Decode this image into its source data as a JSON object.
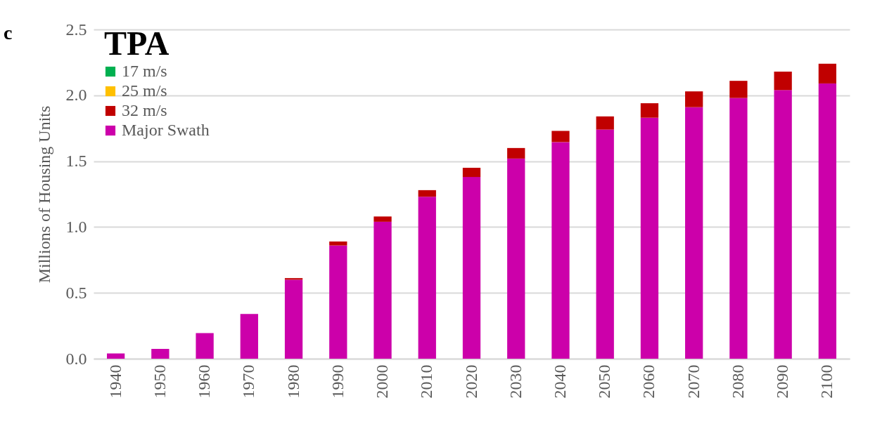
{
  "chart_data": {
    "type": "bar",
    "title": "TPA",
    "ylabel": "Millions of Housing Units",
    "annotations": [
      "c"
    ],
    "categories": [
      "1940",
      "1950",
      "1960",
      "1970",
      "1980",
      "1990",
      "2000",
      "2010",
      "2020",
      "2030",
      "2040",
      "2050",
      "2060",
      "2070",
      "2080",
      "2090",
      "2100"
    ],
    "stacked": true,
    "series": [
      {
        "name": "Major Swath",
        "color": "#cc00aa",
        "values": [
          0.04,
          0.075,
          0.195,
          0.34,
          0.6,
          0.86,
          1.04,
          1.23,
          1.38,
          1.52,
          1.645,
          1.74,
          1.83,
          1.91,
          1.98,
          2.04,
          2.09
        ]
      },
      {
        "name": "32 m/s",
        "color": "#c00000",
        "values": [
          null,
          null,
          null,
          null,
          0.012,
          0.03,
          0.04,
          0.05,
          0.07,
          0.08,
          0.085,
          0.1,
          0.11,
          0.12,
          0.13,
          0.14,
          0.15
        ]
      },
      {
        "name": "25 m/s",
        "color": "#ffc000",
        "values": [
          0,
          0,
          0,
          0,
          0,
          0,
          0,
          0,
          0,
          0,
          0,
          0,
          0,
          0,
          0,
          0,
          0
        ]
      },
      {
        "name": "17 m/s",
        "color": "#00b050",
        "values": [
          0,
          0,
          0,
          0,
          0,
          0,
          0,
          0,
          0,
          0,
          0,
          0,
          0,
          0,
          0,
          0,
          0
        ]
      }
    ],
    "ylim": [
      0,
      2.5
    ],
    "yticks": [
      {
        "value": 0,
        "label": "0.0"
      },
      {
        "value": 0.5,
        "label": "0.5"
      },
      {
        "value": 1,
        "label": "1.0"
      },
      {
        "value": 1.5,
        "label": "1.5"
      },
      {
        "value": 2,
        "label": "2.0"
      },
      {
        "value": 2.5,
        "label": "2.5"
      }
    ],
    "grid": "y",
    "legend": "top left"
  }
}
